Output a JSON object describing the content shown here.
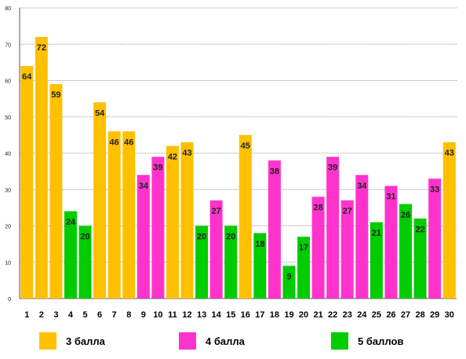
{
  "chart_data": {
    "type": "bar",
    "categories": [
      "1",
      "2",
      "3",
      "4",
      "5",
      "6",
      "7",
      "8",
      "9",
      "10",
      "11",
      "12",
      "13",
      "14",
      "15",
      "16",
      "17",
      "18",
      "19",
      "20",
      "21",
      "22",
      "23",
      "24",
      "25",
      "26",
      "27",
      "28",
      "29",
      "30"
    ],
    "values": [
      64,
      72,
      59,
      24,
      20,
      54,
      46,
      46,
      34,
      39,
      42,
      43,
      20,
      27,
      20,
      45,
      18,
      38,
      9,
      17,
      28,
      39,
      27,
      34,
      21,
      31,
      26,
      22,
      33,
      43
    ],
    "groups": [
      "g3",
      "g3",
      "g3",
      "g5",
      "g5",
      "g3",
      "g3",
      "g3",
      "g4",
      "g4",
      "g3",
      "g3",
      "g5",
      "g4",
      "g5",
      "g3",
      "g5",
      "g4",
      "g5",
      "g5",
      "g4",
      "g4",
      "g4",
      "g4",
      "g5",
      "g4",
      "g5",
      "g5",
      "g4",
      "g3"
    ],
    "ylim": [
      0,
      80
    ],
    "yticks": [
      0,
      10,
      20,
      30,
      40,
      50,
      60,
      70,
      80
    ],
    "grid": true,
    "legend_placement": "bottom",
    "title": "",
    "xlabel": "",
    "ylabel": ""
  },
  "legend": [
    {
      "key": "g3",
      "label": "3 балла",
      "color": "#FFC000"
    },
    {
      "key": "g4",
      "label": "4 балла",
      "color": "#FF33CC"
    },
    {
      "key": "g5",
      "label": "5 баллов",
      "color": "#00CC00"
    }
  ]
}
